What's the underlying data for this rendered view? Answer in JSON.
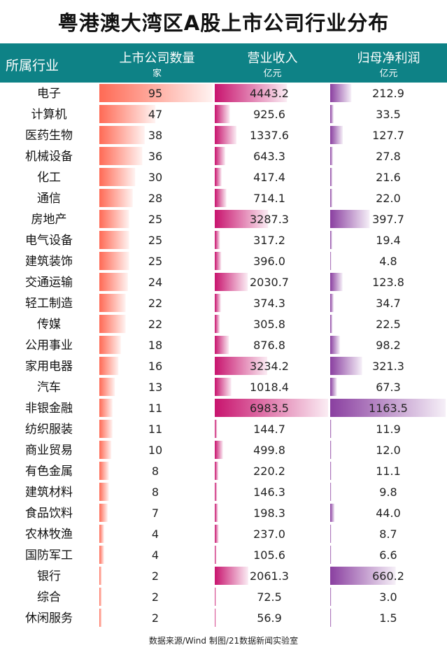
{
  "title": "粤港澳大湾区A股上市公司行业分布",
  "source": "数据来源/Wind  制图/21数据新闻实验室",
  "colors": {
    "header_bg": "#0e8286",
    "count_bar": "#ff6a55",
    "revenue_bar": "#c8146e",
    "profit_bar": "#8a3fa0"
  },
  "chart_data": {
    "type": "table",
    "columns": [
      {
        "key": "industry",
        "label": "所属行业",
        "unit": ""
      },
      {
        "key": "count",
        "label": "上市公司数量",
        "unit": "家"
      },
      {
        "key": "revenue",
        "label": "营业收入",
        "unit": "亿元"
      },
      {
        "key": "profit",
        "label": "归母净利润",
        "unit": "亿元"
      }
    ],
    "rows": [
      {
        "industry": "电子",
        "count": "95",
        "revenue": "4443.2",
        "profit": "212.9"
      },
      {
        "industry": "计算机",
        "count": "47",
        "revenue": "925.6",
        "profit": "33.5"
      },
      {
        "industry": "医药生物",
        "count": "38",
        "revenue": "1337.6",
        "profit": "127.7"
      },
      {
        "industry": "机械设备",
        "count": "36",
        "revenue": "643.3",
        "profit": "27.8"
      },
      {
        "industry": "化工",
        "count": "30",
        "revenue": "417.4",
        "profit": "21.6"
      },
      {
        "industry": "通信",
        "count": "28",
        "revenue": "714.1",
        "profit": "22.0"
      },
      {
        "industry": "房地产",
        "count": "25",
        "revenue": "3287.3",
        "profit": "397.7"
      },
      {
        "industry": "电气设备",
        "count": "25",
        "revenue": "317.2",
        "profit": "19.4"
      },
      {
        "industry": "建筑装饰",
        "count": "25",
        "revenue": "396.0",
        "profit": "4.8"
      },
      {
        "industry": "交通运输",
        "count": "24",
        "revenue": "2030.7",
        "profit": "123.8"
      },
      {
        "industry": "轻工制造",
        "count": "22",
        "revenue": "374.3",
        "profit": "34.7"
      },
      {
        "industry": "传媒",
        "count": "22",
        "revenue": "305.8",
        "profit": "22.5"
      },
      {
        "industry": "公用事业",
        "count": "18",
        "revenue": "876.8",
        "profit": "98.2"
      },
      {
        "industry": "家用电器",
        "count": "16",
        "revenue": "3234.2",
        "profit": "321.3"
      },
      {
        "industry": "汽车",
        "count": "13",
        "revenue": "1018.4",
        "profit": "67.3"
      },
      {
        "industry": "非银金融",
        "count": "11",
        "revenue": "6983.5",
        "profit": "1163.5"
      },
      {
        "industry": "纺织服装",
        "count": "11",
        "revenue": "144.7",
        "profit": "11.9"
      },
      {
        "industry": "商业贸易",
        "count": "10",
        "revenue": "499.8",
        "profit": "12.0"
      },
      {
        "industry": "有色金属",
        "count": "8",
        "revenue": "220.2",
        "profit": "11.1"
      },
      {
        "industry": "建筑材料",
        "count": "8",
        "revenue": "146.3",
        "profit": "9.8"
      },
      {
        "industry": "食品饮料",
        "count": "7",
        "revenue": "198.3",
        "profit": "44.0"
      },
      {
        "industry": "农林牧渔",
        "count": "4",
        "revenue": "237.0",
        "profit": "8.7"
      },
      {
        "industry": "国防军工",
        "count": "4",
        "revenue": "105.6",
        "profit": "6.6"
      },
      {
        "industry": "银行",
        "count": "2",
        "revenue": "2061.3",
        "profit": "660.2"
      },
      {
        "industry": "综合",
        "count": "2",
        "revenue": "72.5",
        "profit": "3.0"
      },
      {
        "industry": "休闲服务",
        "count": "2",
        "revenue": "56.9",
        "profit": "1.5"
      }
    ]
  }
}
